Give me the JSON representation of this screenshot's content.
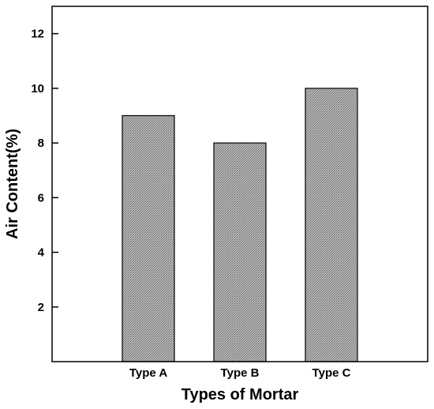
{
  "chart_data": {
    "type": "bar",
    "title": "",
    "xlabel": "Types of Mortar",
    "ylabel": "Air Content(%)",
    "categories": [
      "Type A",
      "Type B",
      "Type C"
    ],
    "values": [
      9,
      8,
      10
    ],
    "ylim": [
      0,
      13
    ],
    "yticks": [
      2,
      4,
      6,
      8,
      10,
      12
    ],
    "grid": false,
    "legend": "none",
    "bar_color": "#a6a6a6",
    "bar_pattern": "stippled",
    "bar_edge_color": "#000000"
  }
}
